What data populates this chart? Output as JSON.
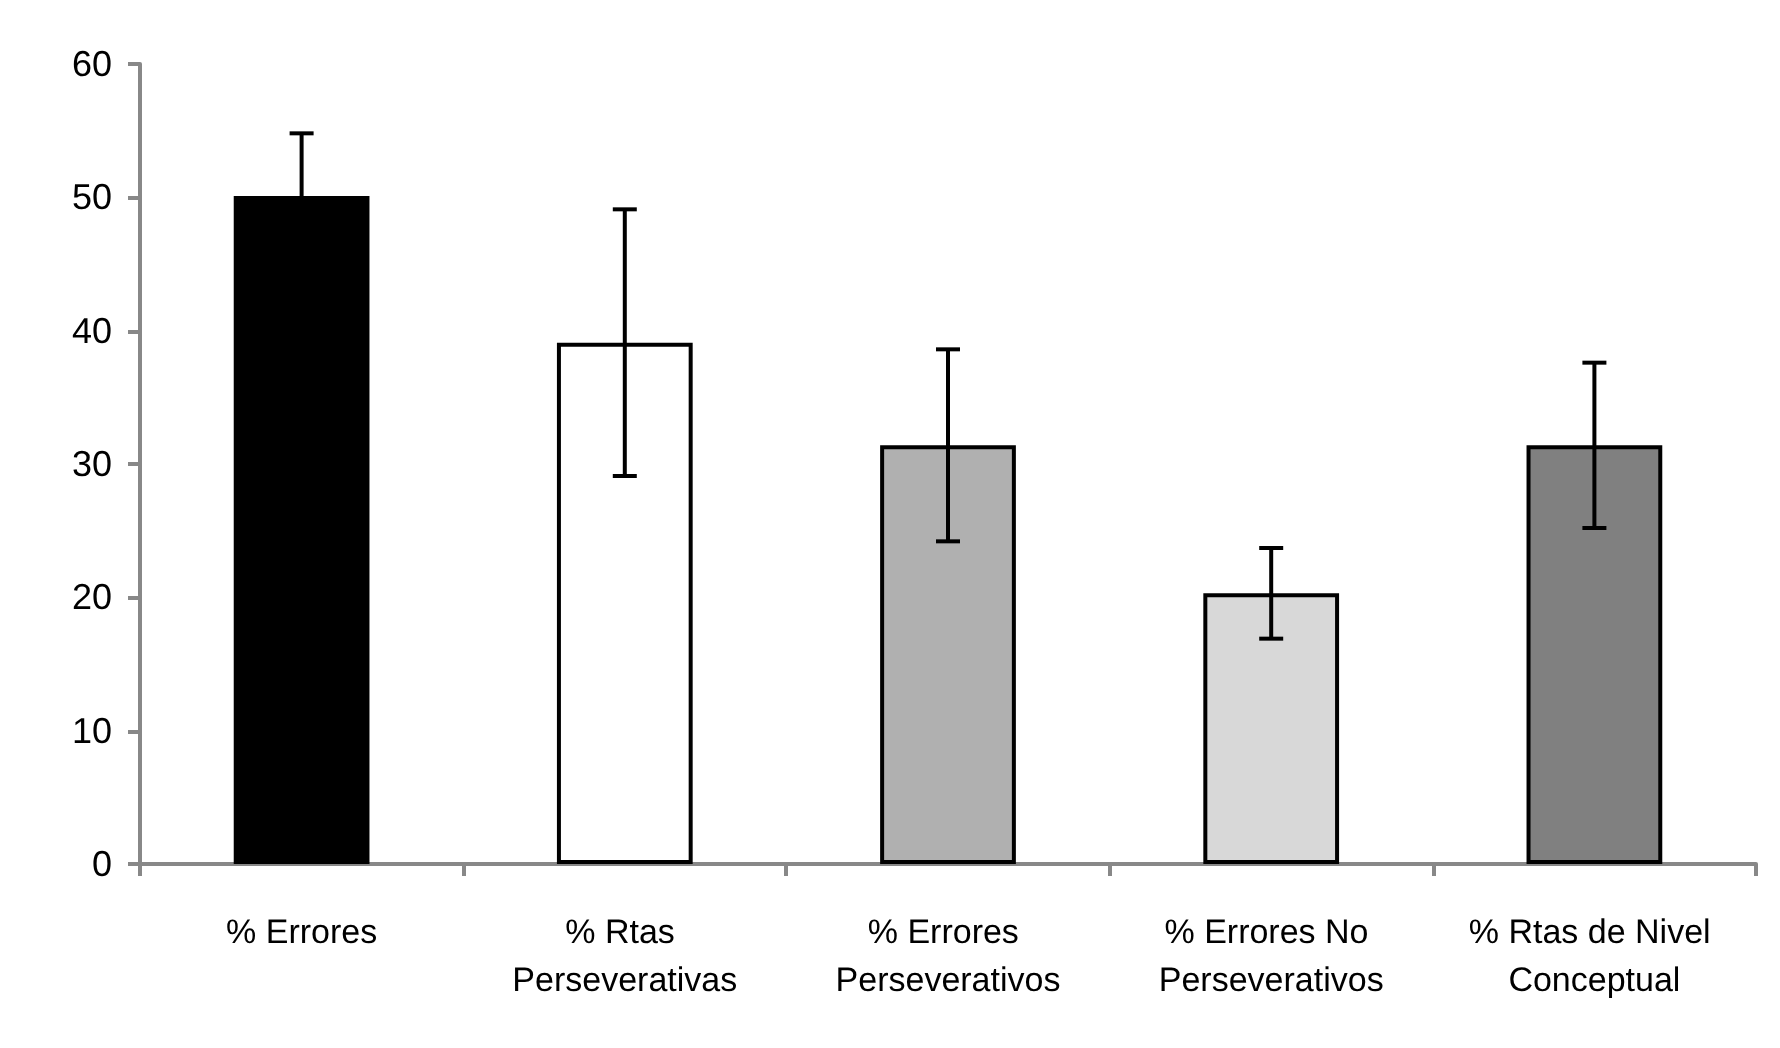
{
  "chart_data": {
    "type": "bar",
    "categories": [
      "% Errores",
      "% Rtas Perseverativas",
      "% Errores Perseverativos",
      "% Errores No Perseverativos",
      "% Rtas de Nivel Conceptual"
    ],
    "values": [
      50.1,
      39.1,
      31.4,
      20.3,
      31.4
    ],
    "errors": [
      4.7,
      10,
      7.2,
      3.4,
      6.2
    ],
    "colors": [
      "#000000",
      "#ffffff",
      "#b0b0b0",
      "#d8d8d8",
      "#808080"
    ],
    "ylim": [
      0,
      60
    ],
    "yticks": [
      0,
      10,
      20,
      30,
      40,
      50,
      60
    ],
    "grid": false
  }
}
